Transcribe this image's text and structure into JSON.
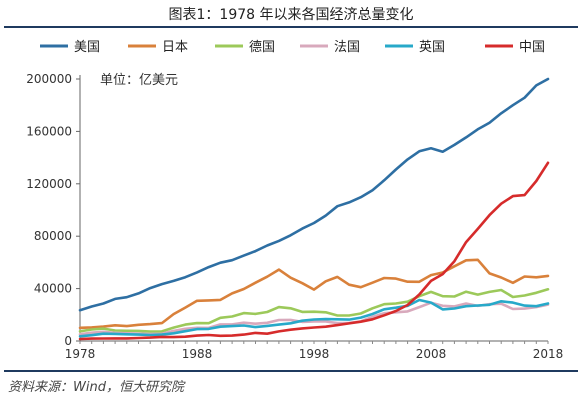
{
  "title": "图表1：1978 年以来各国经济总量变化",
  "source": "资料来源：Wind，恒大研究院",
  "chart_data": {
    "type": "line",
    "title": "图表1：1978 年以来各国经济总量变化",
    "unit_label": "单位：亿美元",
    "xlabel": "",
    "ylabel": "",
    "x": [
      1978,
      1979,
      1980,
      1981,
      1982,
      1983,
      1984,
      1985,
      1986,
      1987,
      1988,
      1989,
      1990,
      1991,
      1992,
      1993,
      1994,
      1995,
      1996,
      1997,
      1998,
      1999,
      2000,
      2001,
      2002,
      2003,
      2004,
      2005,
      2006,
      2007,
      2008,
      2009,
      2010,
      2011,
      2012,
      2013,
      2014,
      2015,
      2016,
      2017,
      2018
    ],
    "xlim": [
      1978,
      2018
    ],
    "ylim": [
      0,
      200000
    ],
    "xticks": [
      1978,
      1988,
      1998,
      2008,
      2018
    ],
    "yticks": [
      0,
      40000,
      80000,
      120000,
      160000,
      200000
    ],
    "ytick_labels": [
      "0",
      "40000",
      "80000",
      "120000",
      "160000",
      "200000"
    ],
    "legend_position": "top",
    "grid": false,
    "series": [
      {
        "name": "美国",
        "color": "#2e6fa3",
        "values": [
          23500,
          26300,
          28600,
          32100,
          33400,
          36300,
          40400,
          43400,
          45900,
          48700,
          52400,
          56400,
          59800,
          61700,
          65200,
          68600,
          72900,
          76400,
          80700,
          85800,
          90100,
          95700,
          102900,
          105800,
          109800,
          115100,
          122700,
          130900,
          138600,
          144800,
          147100,
          144500,
          149700,
          155400,
          161600,
          166600,
          173800,
          180000,
          185700,
          195100,
          200000
        ]
      },
      {
        "name": "日本",
        "color": "#d9813b",
        "values": [
          10100,
          10400,
          11000,
          12000,
          11400,
          12400,
          12900,
          13700,
          20500,
          25500,
          30700,
          31000,
          31400,
          36300,
          39700,
          44500,
          49100,
          54500,
          48300,
          44100,
          39200,
          45600,
          48900,
          43000,
          41100,
          44500,
          48100,
          47600,
          45300,
          45200,
          50300,
          52300,
          57000,
          61600,
          62000,
          51600,
          48500,
          44400,
          49200,
          48600,
          49700
        ]
      },
      {
        "name": "德国",
        "color": "#9cc95a",
        "values": [
          7400,
          8800,
          9500,
          8000,
          7800,
          7700,
          7200,
          7300,
          10200,
          12500,
          13700,
          13600,
          17700,
          18700,
          21300,
          20700,
          22100,
          25900,
          25000,
          22200,
          22400,
          21900,
          19500,
          19500,
          21000,
          25000,
          28100,
          28600,
          30000,
          34200,
          37500,
          34200,
          34000,
          37600,
          35400,
          37500,
          38900,
          33600,
          34700,
          36800,
          39500
        ]
      },
      {
        "name": "法国",
        "color": "#d8a9bc",
        "values": [
          5100,
          6300,
          7000,
          6200,
          5900,
          5600,
          5300,
          5500,
          7700,
          9300,
          10100,
          10000,
          12700,
          12700,
          14000,
          13200,
          13900,
          16000,
          16100,
          14600,
          15000,
          14900,
          13700,
          13800,
          15000,
          18400,
          21200,
          21900,
          22600,
          25900,
          29200,
          26900,
          26400,
          28600,
          26800,
          28100,
          28500,
          24400,
          24700,
          25900,
          27800
        ]
      },
      {
        "name": "英国",
        "color": "#27a9c9",
        "values": [
          3600,
          4400,
          5600,
          5400,
          5100,
          4900,
          4600,
          4900,
          5900,
          7500,
          9100,
          9200,
          10900,
          11400,
          11800,
          10600,
          11500,
          12500,
          13500,
          15500,
          16400,
          16700,
          16600,
          16300,
          17900,
          20600,
          24200,
          25400,
          26900,
          31300,
          29300,
          24100,
          24800,
          26600,
          27100,
          27600,
          30300,
          29300,
          27000,
          26600,
          28600
        ]
      },
      {
        "name": "中国",
        "color": "#d62b2b",
        "values": [
          1500,
          1800,
          1900,
          2000,
          2000,
          2300,
          2600,
          3100,
          3000,
          3300,
          4100,
          4600,
          4000,
          4100,
          4900,
          6200,
          5600,
          7300,
          8600,
          9600,
          10300,
          10900,
          12100,
          13400,
          14700,
          16600,
          19600,
          22900,
          27500,
          35500,
          45900,
          51100,
          60900,
          75500,
          85600,
          96100,
          104800,
          110600,
          111400,
          122100,
          136000
        ]
      }
    ]
  }
}
